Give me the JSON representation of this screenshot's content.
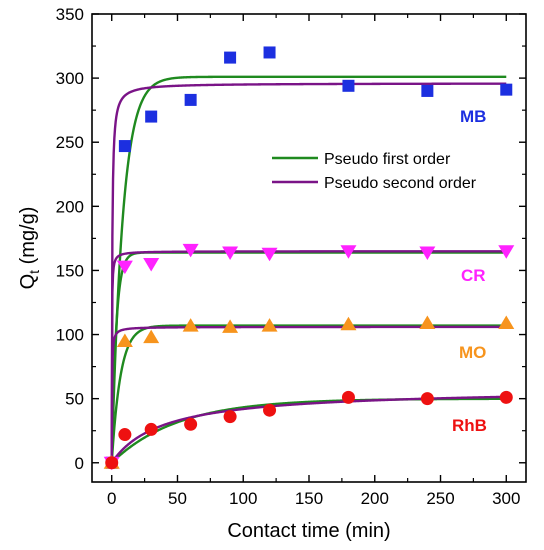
{
  "chart_data": {
    "type": "scatter",
    "xlabel": "Contact time (min)",
    "ylabel": "Q",
    "ylabel_sub": "t",
    "ylabel_unit": " (mg/g)",
    "xlim": [
      -15,
      315
    ],
    "ylim": [
      -15,
      350
    ],
    "x_ticks": [
      0,
      50,
      100,
      150,
      200,
      250,
      300
    ],
    "y_ticks": [
      0,
      50,
      100,
      150,
      200,
      250,
      300,
      350
    ],
    "grid": false,
    "legend": {
      "position": "right-middle",
      "entries": [
        {
          "name": "Pseudo first order",
          "color": "#1f8a1f"
        },
        {
          "name": "Pseudo second order",
          "color": "#7a1487"
        }
      ]
    },
    "series": [
      {
        "name": "MB",
        "marker": "square",
        "color": "#1c2fe0",
        "x": [
          0,
          10,
          30,
          60,
          90,
          120,
          180,
          240,
          300
        ],
        "y": [
          0,
          247,
          270,
          283,
          316,
          320,
          294,
          290,
          291
        ],
        "pfo": {
          "qe": 301,
          "k": 0.12
        },
        "pso": {
          "qe": 296,
          "k": 0.01
        }
      },
      {
        "name": "CR",
        "marker": "triangle-down",
        "color": "#ff22ff",
        "x": [
          0,
          10,
          30,
          60,
          90,
          120,
          180,
          240,
          300
        ],
        "y": [
          0,
          153,
          155,
          166,
          164,
          163,
          165,
          164,
          165
        ],
        "pfo": {
          "qe": 164,
          "k": 0.3
        },
        "pso": {
          "qe": 165,
          "k": 0.05
        }
      },
      {
        "name": "MO",
        "marker": "triangle-up",
        "color": "#f7941d",
        "x": [
          0,
          10,
          30,
          60,
          90,
          120,
          180,
          240,
          300
        ],
        "y": [
          0,
          95,
          98,
          107,
          106,
          107,
          108,
          109,
          109
        ],
        "pfo": {
          "qe": 107,
          "k": 0.15
        },
        "pso": {
          "qe": 106,
          "k": 0.05
        }
      },
      {
        "name": "RhB",
        "marker": "circle",
        "color": "#ee1111",
        "x": [
          0,
          10,
          30,
          60,
          90,
          120,
          180,
          240,
          300
        ],
        "y": [
          0,
          22,
          26,
          30,
          36,
          41,
          51,
          50,
          51
        ],
        "pfo": {
          "qe": 50,
          "k": 0.02
        },
        "pso": {
          "qe": 58,
          "k": 0.00045
        }
      }
    ]
  }
}
